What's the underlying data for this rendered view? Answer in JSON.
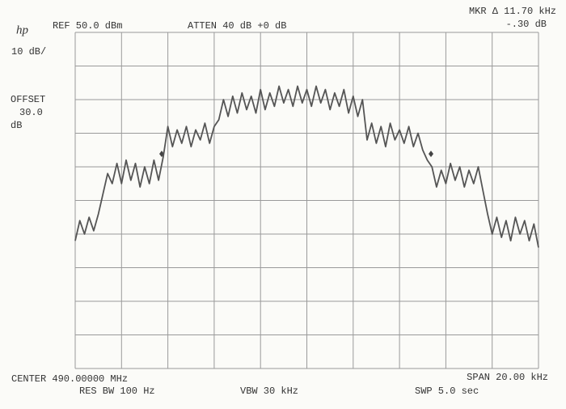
{
  "chart_data": {
    "type": "line",
    "logo": "hp",
    "ref_label": "REF 50.0 dBm",
    "atten_label": "ATTEN 40 dB +0 dB",
    "marker_label": "MKR Δ 11.70 kHz",
    "marker_value": "-.30 dB",
    "scale_label": "10 dB/",
    "offset_label": "OFFSET",
    "offset_value": "30.0",
    "offset_unit": "dB",
    "center_label": "CENTER 490.00000 MHz",
    "rbw_label": "RES BW 100 Hz",
    "vbw_label": "VBW 30 kHz",
    "span_label": "SPAN 20.00 kHz",
    "sweep_label": "SWP 5.0 sec",
    "xlim": [
      -10,
      10
    ],
    "ylim": [
      -50,
      50
    ],
    "xticks": [
      -10,
      -8,
      -6,
      -4,
      -2,
      0,
      2,
      4,
      6,
      8,
      10
    ],
    "yticks": [
      -50,
      -40,
      -30,
      -20,
      -10,
      0,
      10,
      20,
      30,
      40,
      50
    ],
    "grid": true,
    "series": [
      {
        "color": "#555555",
        "x": [
          -10,
          -9.8,
          -9.6,
          -9.4,
          -9.2,
          -9,
          -8.8,
          -8.6,
          -8.4,
          -8.2,
          -8,
          -7.8,
          -7.6,
          -7.4,
          -7.2,
          -7,
          -6.8,
          -6.6,
          -6.4,
          -6.2,
          -6,
          -5.8,
          -5.6,
          -5.4,
          -5.2,
          -5,
          -4.8,
          -4.6,
          -4.4,
          -4.2,
          -4,
          -3.8,
          -3.6,
          -3.4,
          -3.2,
          -3,
          -2.8,
          -2.6,
          -2.4,
          -2.2,
          -2,
          -1.8,
          -1.6,
          -1.4,
          -1.2,
          -1,
          -0.8,
          -0.6,
          -0.4,
          -0.2,
          0,
          0.2,
          0.4,
          0.6,
          0.8,
          1,
          1.2,
          1.4,
          1.6,
          1.8,
          2,
          2.2,
          2.4,
          2.6,
          2.8,
          3,
          3.2,
          3.4,
          3.6,
          3.8,
          4,
          4.2,
          4.4,
          4.6,
          4.8,
          5,
          5.2,
          5.4,
          5.6,
          5.8,
          6,
          6.2,
          6.4,
          6.6,
          6.8,
          7,
          7.2,
          7.4,
          7.6,
          7.8,
          8,
          8.2,
          8.4,
          8.6,
          8.8,
          9,
          9.2,
          9.4,
          9.6,
          9.8,
          10
        ],
        "values": [
          -12,
          -6,
          -10,
          -5,
          -9,
          -4,
          2,
          8,
          5,
          11,
          5,
          12,
          6,
          11,
          4,
          10,
          5,
          12,
          6,
          13,
          22,
          16,
          21,
          17,
          22,
          16,
          21,
          18,
          23,
          17,
          22,
          24,
          30,
          25,
          31,
          26,
          32,
          27,
          31,
          26,
          33,
          27,
          32,
          28,
          34,
          29,
          33,
          28,
          34,
          29,
          33,
          28,
          34,
          29,
          33,
          27,
          32,
          28,
          33,
          26,
          31,
          25,
          30,
          18,
          23,
          17,
          22,
          16,
          23,
          18,
          21,
          17,
          22,
          16,
          20,
          15,
          12,
          10,
          4,
          9,
          5,
          11,
          6,
          10,
          4,
          9,
          5,
          10,
          3,
          -4,
          -10,
          -5,
          -11,
          -6,
          -12,
          -5,
          -10,
          -6,
          -12,
          -7,
          -14
        ]
      }
    ]
  }
}
